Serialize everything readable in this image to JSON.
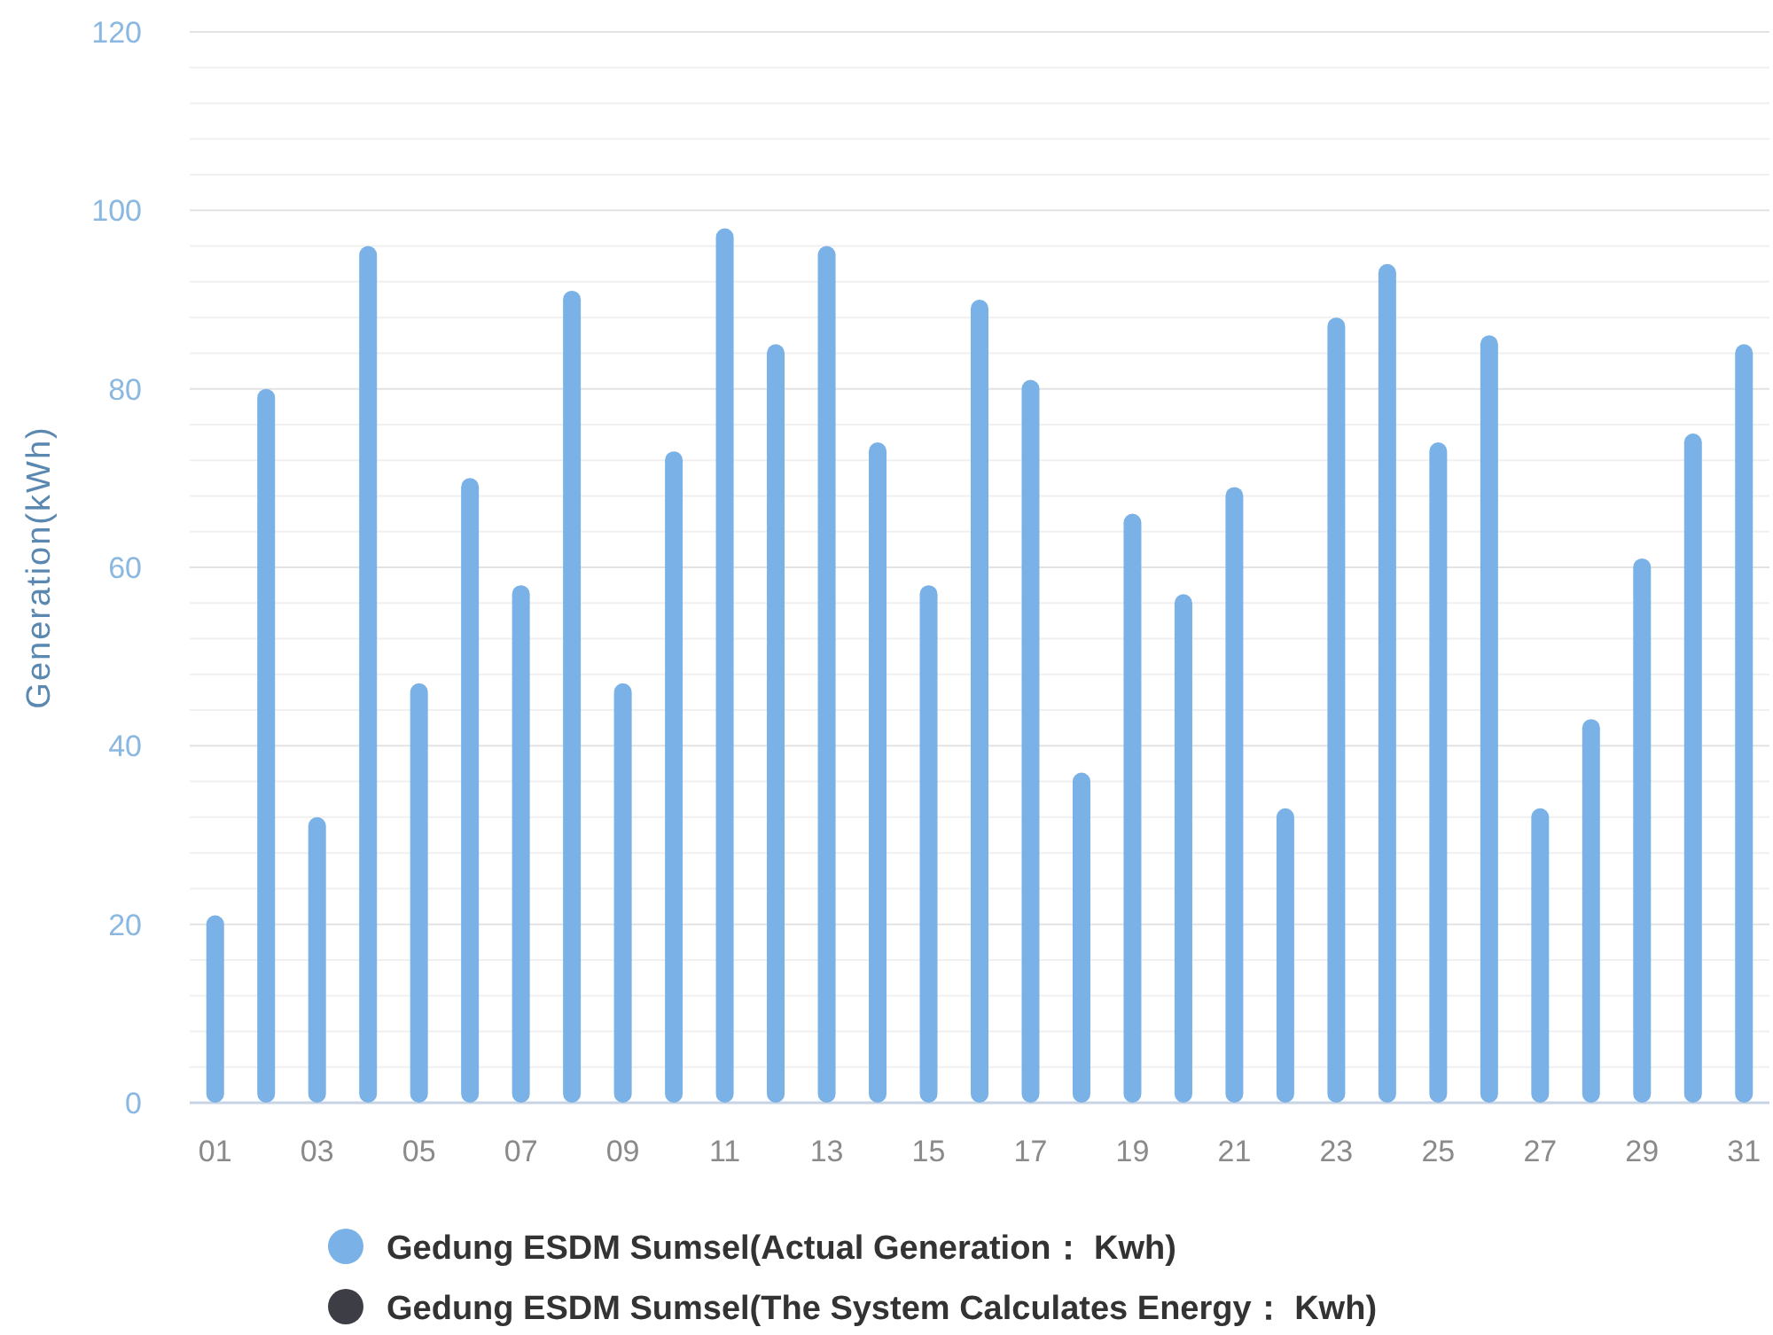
{
  "chart_data": {
    "type": "bar",
    "ylabel": "Generation(kWh)",
    "categories": [
      "01",
      null,
      "03",
      null,
      "05",
      null,
      "07",
      null,
      "09",
      null,
      "11",
      null,
      "13",
      null,
      "15",
      null,
      "17",
      null,
      "19",
      null,
      "21",
      null,
      "23",
      null,
      "25",
      null,
      "27",
      null,
      "29",
      null,
      "31"
    ],
    "series": [
      {
        "name": "Gedung ESDM Sumsel(Actual Generation： Kwh)",
        "color": "#7ab1e6",
        "values": [
          21,
          80,
          32,
          96,
          47,
          70,
          58,
          91,
          47,
          73,
          98,
          85,
          96,
          74,
          58,
          90,
          81,
          37,
          66,
          57,
          69,
          33,
          88,
          94,
          74,
          86,
          33,
          43,
          61,
          75,
          85
        ]
      },
      {
        "name": "Gedung ESDM Sumsel(The System Calculates Energy： Kwh)",
        "color": "#3d3d45",
        "values": [
          null,
          null,
          null,
          null,
          null,
          null,
          null,
          null,
          null,
          null,
          null,
          null,
          null,
          null,
          null,
          null,
          null,
          null,
          null,
          null,
          null,
          null,
          null,
          null,
          null,
          null,
          null,
          null,
          null,
          null,
          null
        ]
      }
    ],
    "ylim": [
      0,
      120
    ],
    "yticks": [
      0,
      {
        "value": 4,
        "label": null
      },
      {
        "value": 8,
        "label": null
      },
      {
        "value": 12,
        "label": null
      },
      {
        "value": 16,
        "label": null
      },
      20,
      {
        "value": 24,
        "label": null
      },
      {
        "value": 28,
        "label": null
      },
      {
        "value": 32,
        "label": null
      },
      {
        "value": 36,
        "label": null
      },
      40,
      {
        "value": 44,
        "label": null
      },
      {
        "value": 48,
        "label": null
      },
      {
        "value": 52,
        "label": null
      },
      {
        "value": 56,
        "label": null
      },
      60,
      {
        "value": 64,
        "label": null
      },
      {
        "value": 68,
        "label": null
      },
      {
        "value": 72,
        "label": null
      },
      {
        "value": 76,
        "label": null
      },
      80,
      {
        "value": 84,
        "label": null
      },
      {
        "value": 88,
        "label": null
      },
      {
        "value": 92,
        "label": null
      },
      {
        "value": 96,
        "label": null
      },
      100,
      {
        "value": 104,
        "label": null
      },
      {
        "value": 108,
        "label": null
      },
      {
        "value": 112,
        "label": null
      },
      {
        "value": 116,
        "label": null
      },
      120
    ],
    "grid": "y",
    "legend": "bottom"
  }
}
